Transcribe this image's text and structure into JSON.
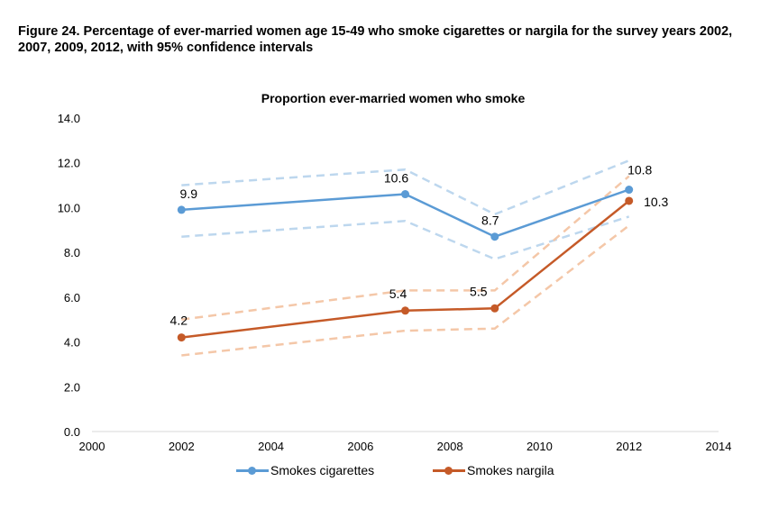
{
  "figure": {
    "title": "Figure 24. Percentage of ever-married women age 15-49 who smoke cigarettes or nargila for the survey years 2002, 2007, 2009, 2012, with 95% confidence intervals"
  },
  "chart_data": {
    "type": "line",
    "title": "Proportion ever-married women who smoke",
    "xlabel": "",
    "ylabel": "",
    "xlim": [
      2000,
      2014
    ],
    "ylim": [
      0,
      14
    ],
    "x_ticks": [
      2000,
      2002,
      2004,
      2006,
      2008,
      2010,
      2012,
      2014
    ],
    "y_ticks": [
      "0.0",
      "2.0",
      "4.0",
      "6.0",
      "8.0",
      "10.0",
      "12.0",
      "14.0"
    ],
    "grid": false,
    "legend_position": "bottom",
    "series": [
      {
        "name": "Smokes cigarettes",
        "color": "#5b9bd5",
        "ci_color": "#bdd7ee",
        "x": [
          2002,
          2007,
          2009,
          2012
        ],
        "values": [
          9.9,
          10.6,
          8.7,
          10.8
        ],
        "labels": [
          "9.9",
          "10.6",
          "8.7",
          "10.8"
        ],
        "ci_upper": [
          11.0,
          11.7,
          9.7,
          12.1
        ],
        "ci_lower": [
          8.7,
          9.4,
          7.7,
          9.6
        ]
      },
      {
        "name": "Smokes nargila",
        "color": "#c55a28",
        "ci_color": "#f4c7a8",
        "x": [
          2002,
          2007,
          2009,
          2012
        ],
        "values": [
          4.2,
          5.4,
          5.5,
          10.3
        ],
        "labels": [
          "4.2",
          "5.4",
          "5.5",
          "10.3"
        ],
        "ci_upper": [
          5.0,
          6.3,
          6.3,
          11.4
        ],
        "ci_lower": [
          3.4,
          4.5,
          4.6,
          9.2
        ]
      }
    ]
  }
}
